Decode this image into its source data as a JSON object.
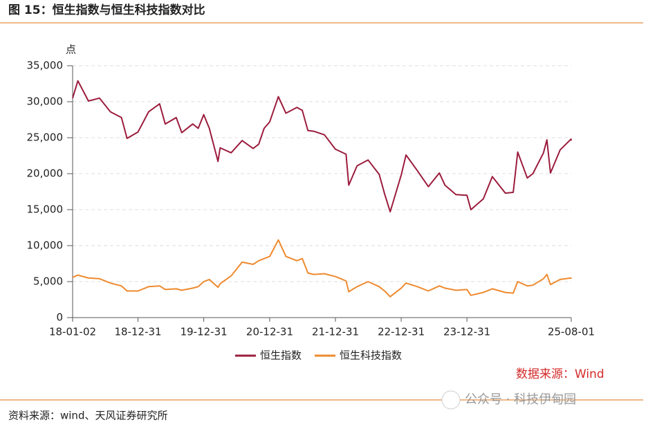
{
  "header": {
    "title": "图 15：恒生指数与恒生科技指数对比"
  },
  "chart_data": {
    "type": "line",
    "y_label": "点",
    "x": [
      "18-01-02",
      "18-01-31",
      "18-03-31",
      "18-05-31",
      "18-07-31",
      "18-09-30",
      "18-10-31",
      "18-12-31",
      "19-02-28",
      "19-04-30",
      "19-05-31",
      "19-07-31",
      "19-08-31",
      "19-10-31",
      "19-11-30",
      "19-12-31",
      "20-01-31",
      "20-03-19",
      "20-03-31",
      "20-05-31",
      "20-07-31",
      "20-09-30",
      "20-10-31",
      "20-11-30",
      "20-12-31",
      "21-02-17",
      "21-03-31",
      "21-05-31",
      "21-06-30",
      "21-07-31",
      "21-08-31",
      "21-10-31",
      "21-12-31",
      "22-02-28",
      "22-03-15",
      "22-04-30",
      "22-06-30",
      "22-08-31",
      "22-09-30",
      "22-10-31",
      "22-12-31",
      "23-01-27",
      "23-03-31",
      "23-05-31",
      "23-07-31",
      "23-08-31",
      "23-10-31",
      "23-12-31",
      "24-01-22",
      "24-03-31",
      "24-05-20",
      "24-07-31",
      "24-09-13",
      "24-10-08",
      "24-11-30",
      "24-12-31",
      "25-02-28",
      "25-03-19",
      "25-04-08",
      "25-05-31",
      "25-07-31",
      "25-08-01"
    ],
    "series": [
      {
        "name": "恒生指数",
        "color": "#9b1c3c",
        "values": [
          30500,
          32900,
          30100,
          30500,
          28600,
          27800,
          24900,
          25800,
          28600,
          29700,
          26900,
          27800,
          25700,
          26900,
          26300,
          28200,
          26300,
          21700,
          23600,
          22900,
          24600,
          23500,
          24100,
          26300,
          27200,
          30700,
          28400,
          29200,
          28800,
          26000,
          25900,
          25400,
          23400,
          22700,
          18400,
          21100,
          21900,
          19900,
          17200,
          14700,
          19800,
          22600,
          20400,
          18200,
          20100,
          18400,
          17100,
          17000,
          15000,
          16500,
          19600,
          17300,
          17400,
          23000,
          19400,
          20000,
          22900,
          24700,
          20100,
          23300,
          24800,
          24600
        ]
      },
      {
        "name": "恒生科技指数",
        "color": "#ee8a2e",
        "values": [
          5600,
          5900,
          5500,
          5400,
          4800,
          4400,
          3700,
          3700,
          4300,
          4400,
          3900,
          4000,
          3800,
          4100,
          4300,
          5000,
          5300,
          4200,
          4700,
          5800,
          7700,
          7400,
          7900,
          8200,
          8500,
          10800,
          8500,
          7900,
          8200,
          6200,
          6000,
          6100,
          5700,
          5100,
          3600,
          4300,
          5000,
          4300,
          3700,
          2900,
          4100,
          4800,
          4300,
          3700,
          4400,
          4100,
          3800,
          3900,
          3100,
          3500,
          4000,
          3500,
          3400,
          5000,
          4400,
          4500,
          5400,
          6000,
          4600,
          5300,
          5500,
          5400
        ]
      }
    ],
    "xlim": [
      "18-01-02",
      "25-08-01"
    ],
    "xticks": [
      "18-01-02",
      "18-12-31",
      "19-12-31",
      "20-12-31",
      "21-12-31",
      "22-12-31",
      "23-12-31",
      "25-08-01"
    ],
    "ylim": [
      0,
      35000
    ],
    "yticks": [
      0,
      {
        "value": 5000,
        "label": "5,000"
      },
      {
        "value": 10000,
        "label": "10,000"
      },
      {
        "value": 15000,
        "label": "15,000"
      },
      {
        "value": 20000,
        "label": "20,000"
      },
      {
        "value": 25000,
        "label": "25,000"
      },
      {
        "value": 30000,
        "label": "30,000"
      },
      {
        "value": 35000,
        "label": "35,000"
      }
    ],
    "grid": true,
    "legend": "bottom",
    "annotation": "数据来源：Wind"
  },
  "footer": {
    "source": "资料来源：wind、天风证券研究所",
    "watermark": "公众号 · 科技伊甸园"
  }
}
